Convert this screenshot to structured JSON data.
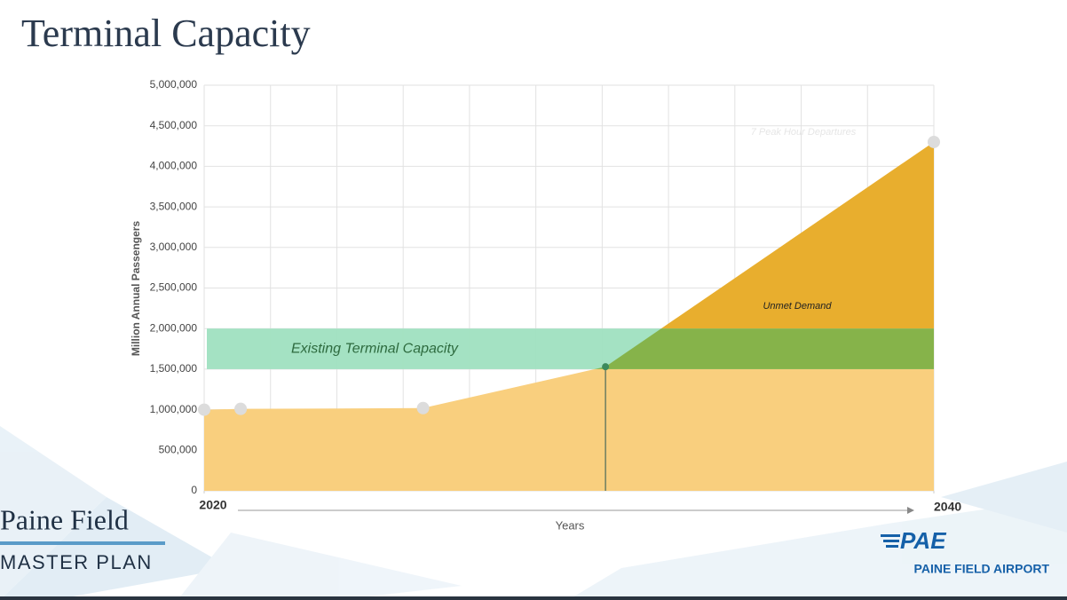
{
  "title": "Terminal Capacity",
  "chart_data": {
    "type": "area",
    "y_label": "Million Annual Passengers",
    "x_label": "Years",
    "x": [
      2020,
      2021,
      2026,
      2031,
      2040
    ],
    "values": [
      1000000,
      1010000,
      1020000,
      1530000,
      4300000
    ],
    "color": "#f9cf7e",
    "unmet_color": "#e8ae2e",
    "xlim": [
      2020,
      2040
    ],
    "xticks": [
      2020,
      2040
    ],
    "ylim": [
      0,
      5000000
    ],
    "yticks": [
      0,
      {
        "value": 500000,
        "label": "500,000"
      },
      {
        "value": 1000000,
        "label": "1,000,000"
      },
      {
        "value": 1500000,
        "label": "1,500,000"
      },
      {
        "value": 2000000,
        "label": "2,000,000"
      },
      {
        "value": 2500000,
        "label": "2,500,000"
      },
      {
        "value": 3000000,
        "label": "3,000,000"
      },
      {
        "value": 3500000,
        "label": "3,500,000"
      },
      {
        "value": 4000000,
        "label": "4,000,000"
      },
      {
        "value": 4500000,
        "label": "4,500,000"
      },
      {
        "value": 5000000,
        "label": "5,000,000"
      }
    ],
    "grid": true,
    "capacity": {
      "label": "Existing Terminal Capacity",
      "range": [
        1500000,
        2000000
      ],
      "color": "#9fe0c0",
      "overlap_color": "#86b34a"
    },
    "annotations": [
      "Unmet Demand",
      "7 Peak Hour Departures"
    ]
  },
  "branding": {
    "name": "Paine Field",
    "subtitle": "MASTER PLAN",
    "logo": "PAE",
    "airport": "PAINE FIELD AIRPORT"
  }
}
